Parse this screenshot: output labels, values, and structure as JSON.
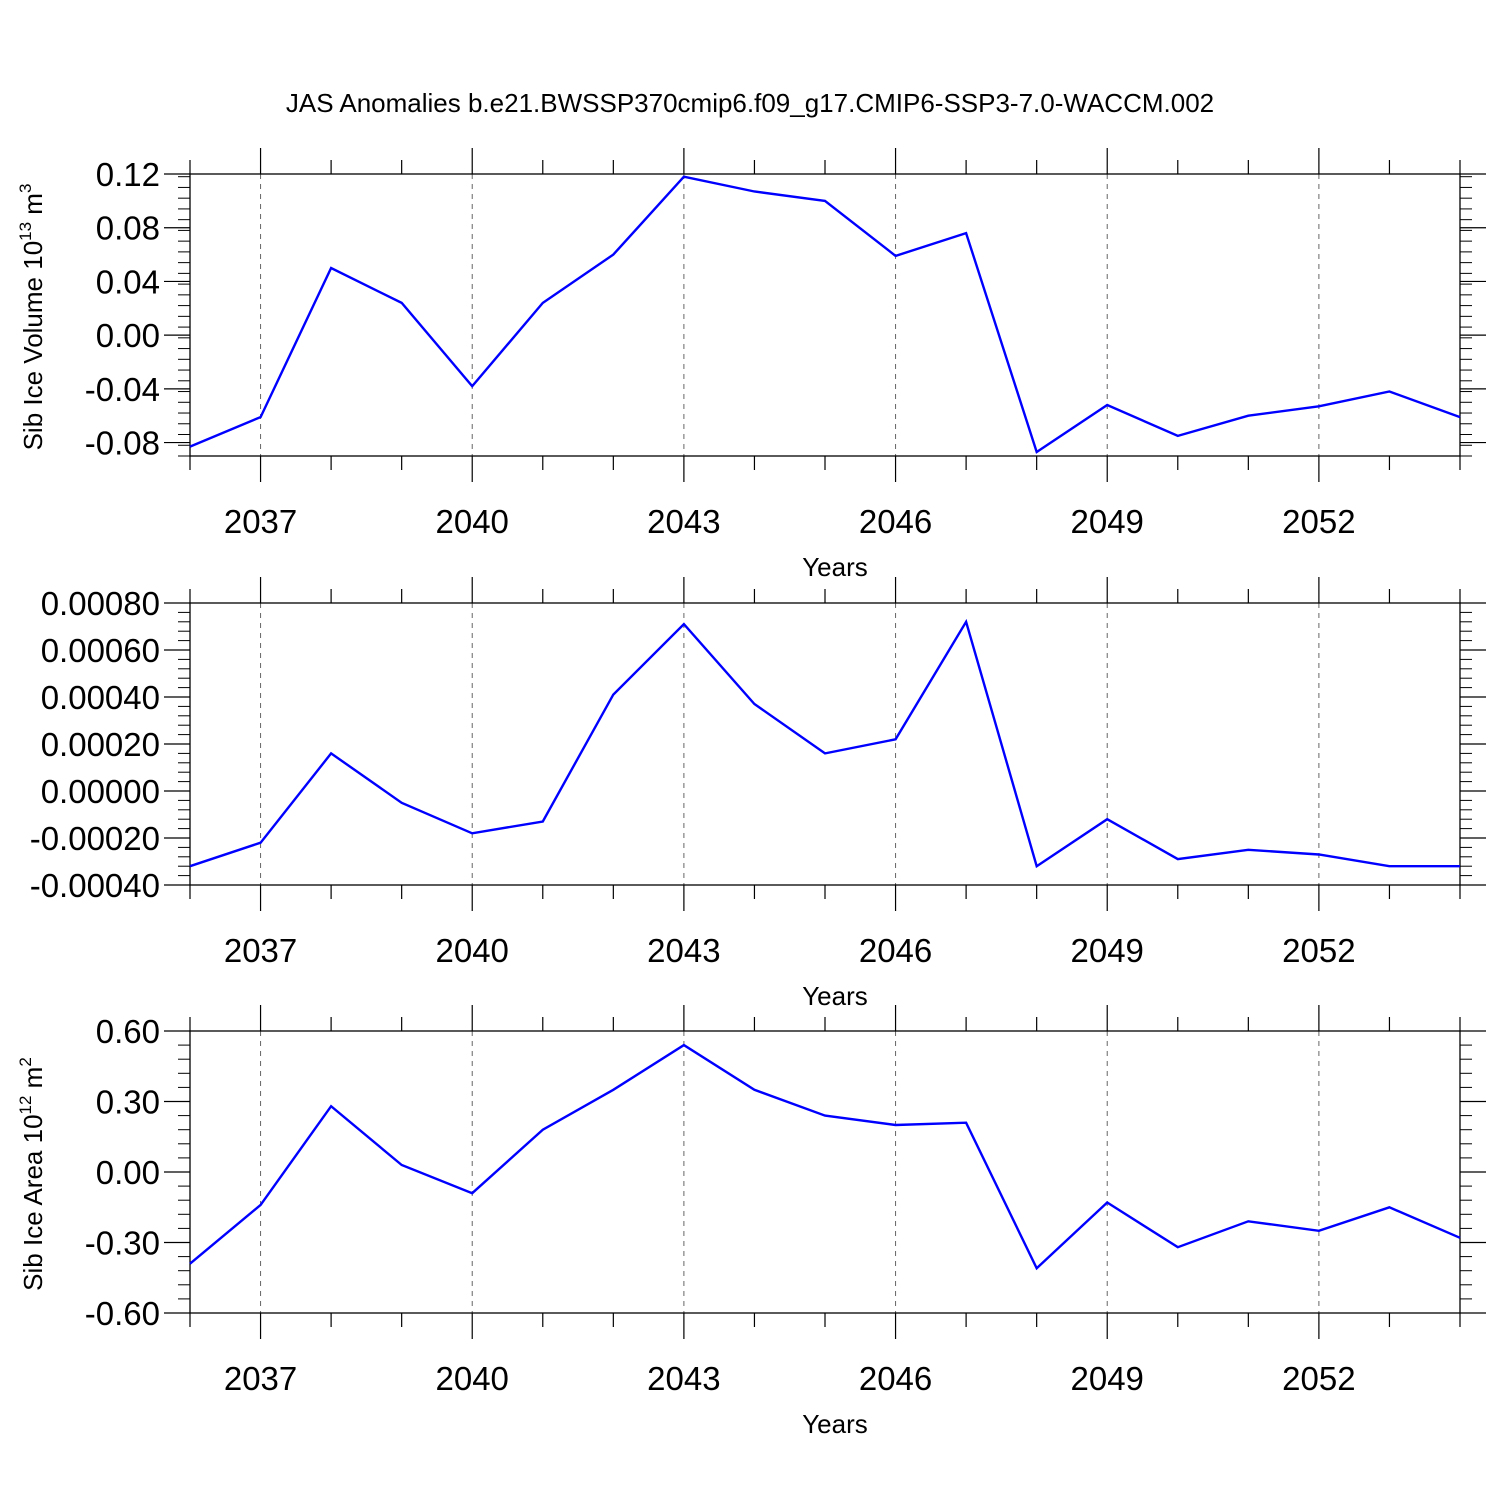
{
  "title": "JAS Anomalies b.e21.BWSSP370cmip6.f09_g17.CMIP6-SSP3-7.0-WACCM.002",
  "colors": {
    "line": "#0000ff",
    "axis": "#000000",
    "grid": "#666666"
  },
  "chart_data": [
    {
      "type": "line",
      "xlabel": "Years",
      "ylabel": {
        "prefix": "Sib Ice Volume 10",
        "exp": "13",
        "unit": " m",
        "unit_exp": "3"
      },
      "xlim": [
        2036,
        2054
      ],
      "ylim": [
        -0.09,
        0.12
      ],
      "x_ticks": [
        2037,
        2040,
        2043,
        2046,
        2049,
        2052
      ],
      "y_ticks": [
        -0.08,
        -0.04,
        0.0,
        0.04,
        0.08,
        0.12
      ],
      "y_tick_labels": [
        "-0.08",
        "-0.04",
        "0.00",
        "0.04",
        "0.08",
        "0.12"
      ],
      "grid": "x dashed",
      "series": [
        {
          "x": [
            2036,
            2037,
            2038,
            2039,
            2040,
            2041,
            2042,
            2043,
            2044,
            2045,
            2046,
            2047,
            2048,
            2049,
            2050,
            2051,
            2052,
            2053,
            2054
          ],
          "values": [
            -0.083,
            -0.061,
            0.05,
            0.024,
            -0.038,
            0.024,
            0.06,
            0.118,
            0.107,
            0.1,
            0.059,
            0.076,
            -0.087,
            -0.052,
            -0.075,
            -0.06,
            -0.053,
            -0.042,
            -0.061
          ]
        }
      ]
    },
    {
      "type": "line",
      "xlabel": "Years",
      "ylabel": null,
      "xlim": [
        2036,
        2054
      ],
      "ylim": [
        -0.0004,
        0.0008
      ],
      "x_ticks": [
        2037,
        2040,
        2043,
        2046,
        2049,
        2052
      ],
      "y_ticks": [
        -0.0004,
        -0.0002,
        0.0,
        0.0002,
        0.0004,
        0.0006,
        0.0008
      ],
      "y_tick_labels": [
        "-0.00040",
        "-0.00020",
        "0.00000",
        "0.00020",
        "0.00040",
        "0.00060",
        "0.00080"
      ],
      "grid": "x dashed",
      "series": [
        {
          "x": [
            2036,
            2037,
            2038,
            2039,
            2040,
            2041,
            2042,
            2043,
            2044,
            2045,
            2046,
            2047,
            2048,
            2049,
            2050,
            2051,
            2052,
            2053,
            2054
          ],
          "values": [
            -0.00032,
            -0.00022,
            0.00016,
            -5e-05,
            -0.00018,
            -0.00013,
            0.00041,
            0.00071,
            0.00037,
            0.00016,
            0.00022,
            0.00072,
            -0.00032,
            -0.00012,
            -0.00029,
            -0.00025,
            -0.00027,
            -0.00032,
            -0.00032
          ]
        }
      ]
    },
    {
      "type": "line",
      "xlabel": "Years",
      "ylabel": {
        "prefix": "Sib Ice Area 10",
        "exp": "12",
        "unit": " m",
        "unit_exp": "2"
      },
      "xlim": [
        2036,
        2054
      ],
      "ylim": [
        -0.6,
        0.6
      ],
      "x_ticks": [
        2037,
        2040,
        2043,
        2046,
        2049,
        2052
      ],
      "y_ticks": [
        -0.6,
        -0.3,
        0.0,
        0.3,
        0.6
      ],
      "y_tick_labels": [
        "-0.60",
        "-0.30",
        "0.00",
        "0.30",
        "0.60"
      ],
      "grid": "x dashed",
      "series": [
        {
          "x": [
            2036,
            2037,
            2038,
            2039,
            2040,
            2041,
            2042,
            2043,
            2044,
            2045,
            2046,
            2047,
            2048,
            2049,
            2050,
            2051,
            2052,
            2053,
            2054
          ],
          "values": [
            -0.39,
            -0.14,
            0.28,
            0.03,
            -0.09,
            0.18,
            0.35,
            0.54,
            0.35,
            0.24,
            0.2,
            0.21,
            -0.41,
            -0.13,
            -0.32,
            -0.21,
            -0.25,
            -0.15,
            -0.28
          ]
        }
      ]
    }
  ]
}
